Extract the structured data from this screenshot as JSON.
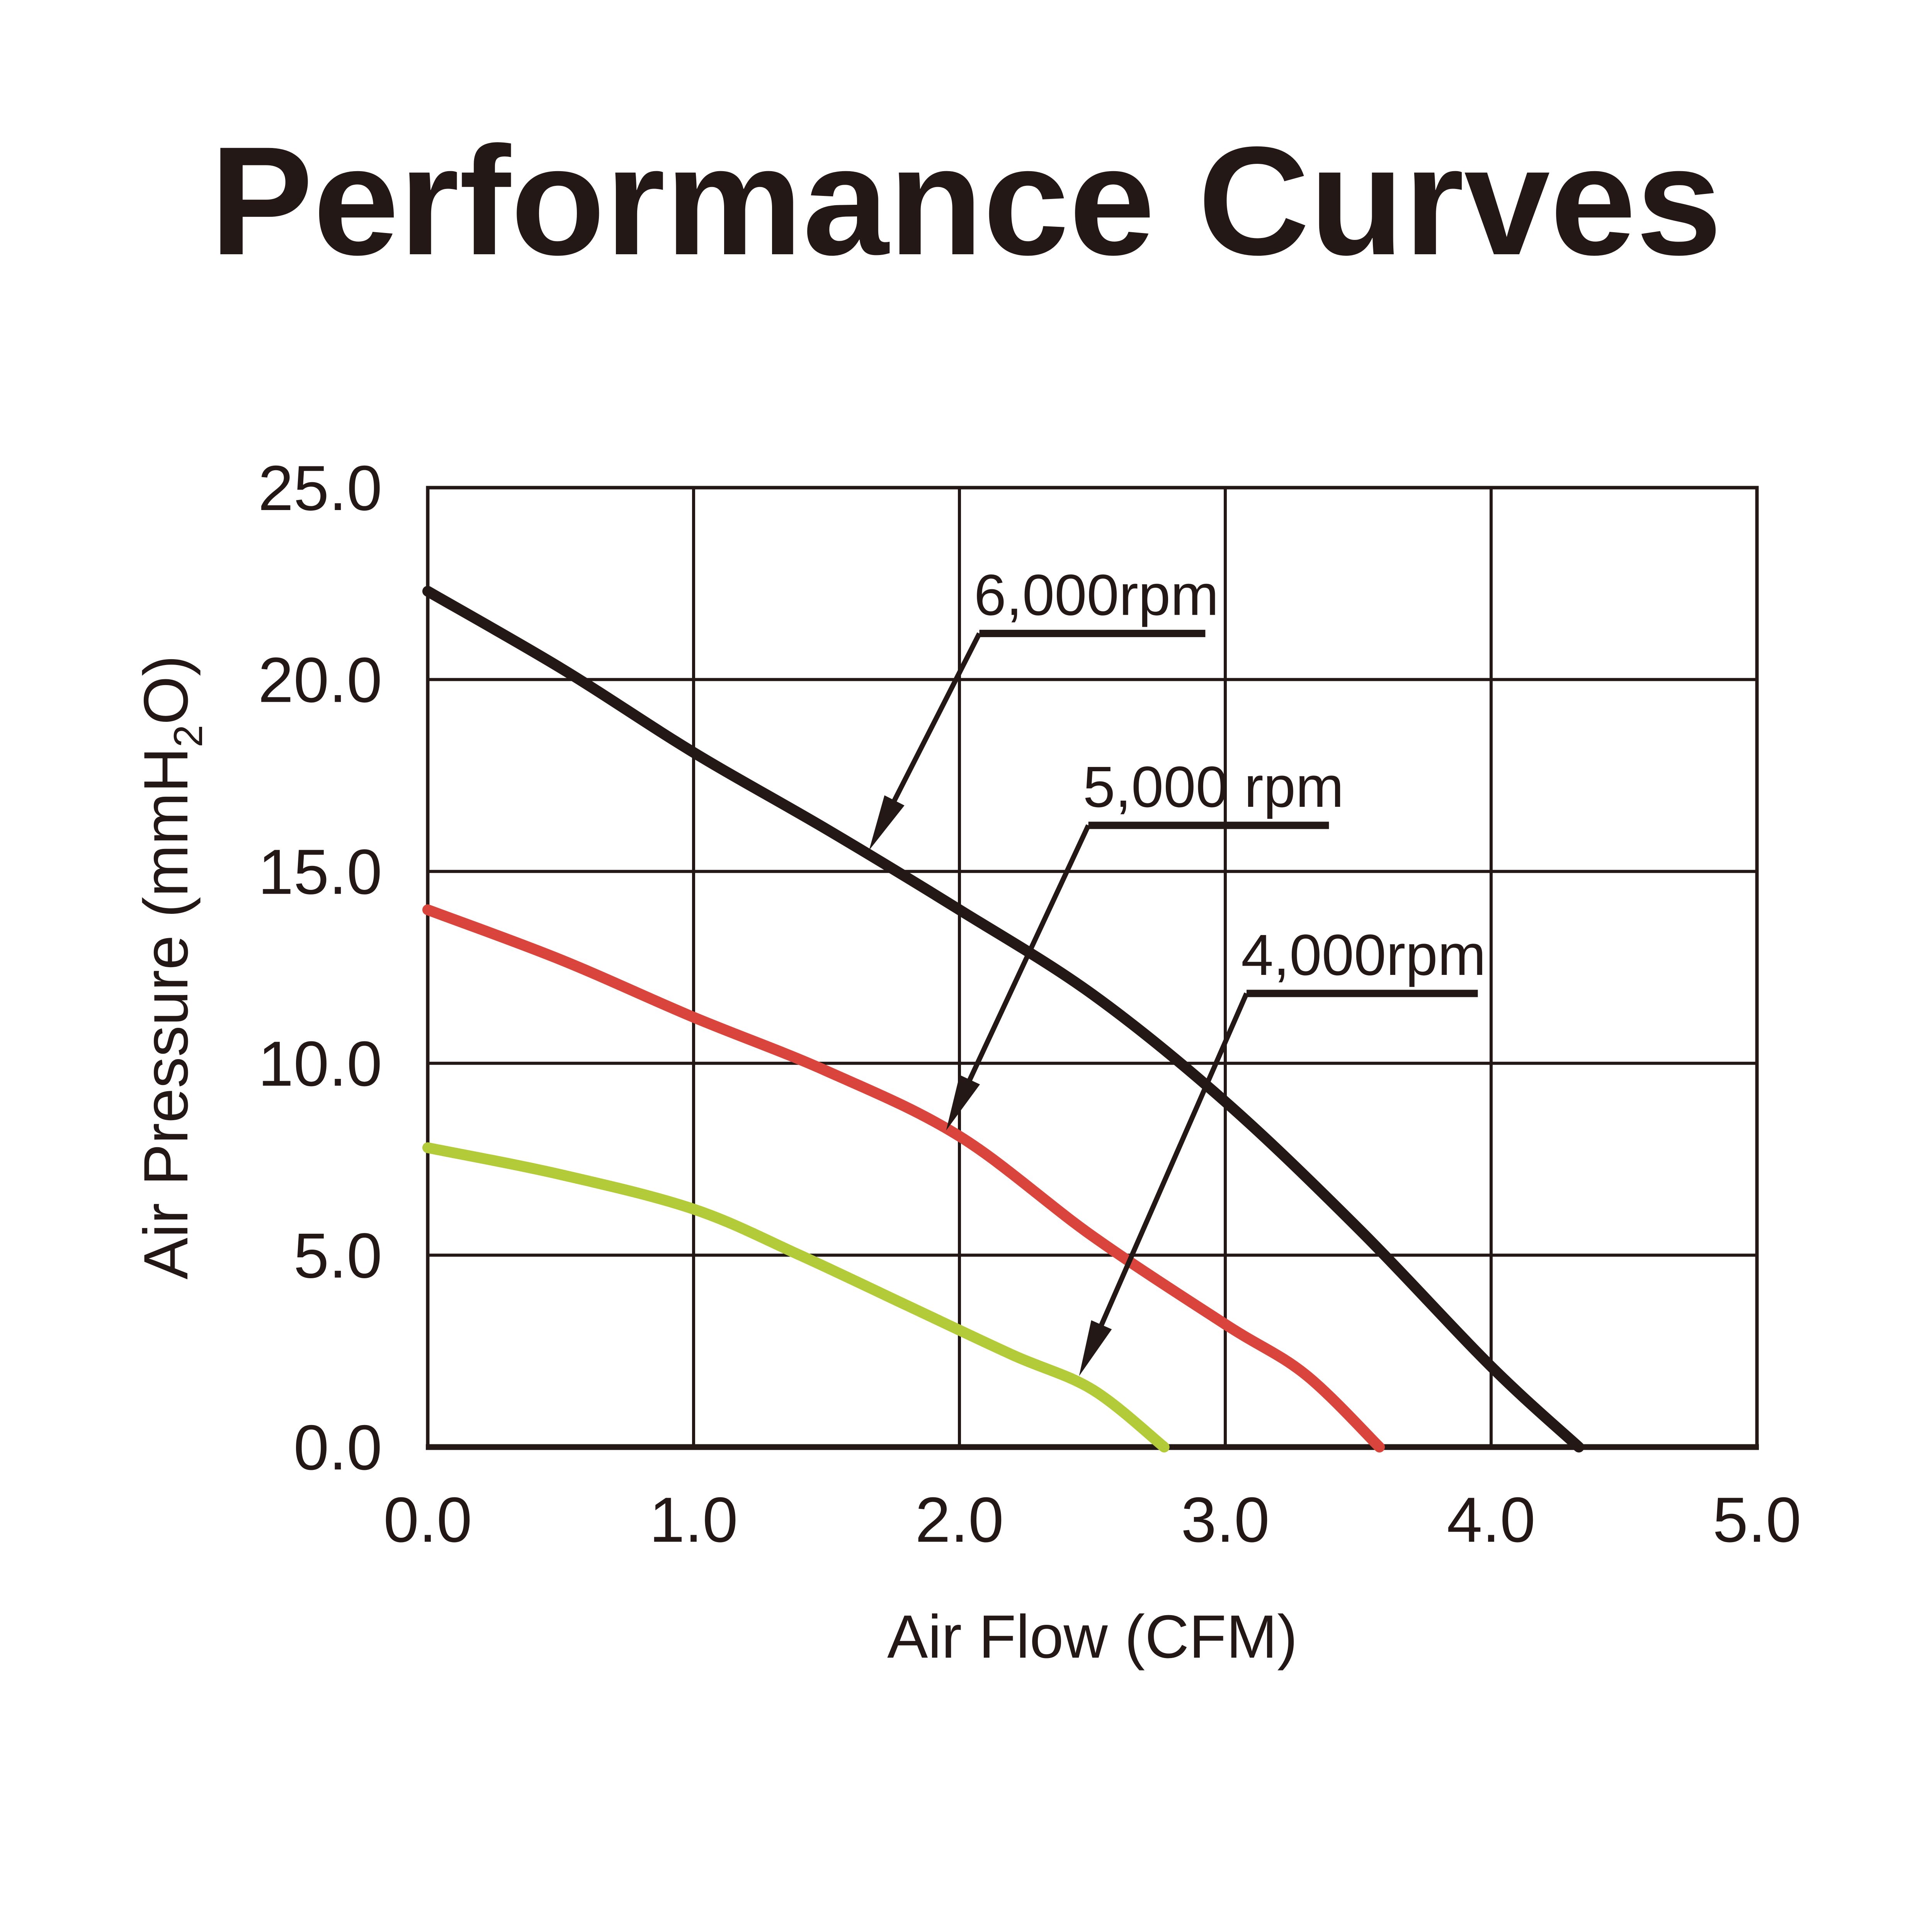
{
  "title": {
    "text": "Performance Curves"
  },
  "colors": {
    "ink": "#231815",
    "red": "#d9453c",
    "green": "#b3cb38",
    "background": "#ffffff"
  },
  "chart_data": {
    "type": "line",
    "title": "Performance Curves",
    "xlabel": "Air Flow (CFM)",
    "ylabel": "Air Pressure (mmH2O)",
    "ylabel_parts": {
      "prefix": "Air Pressure (mmH",
      "subscript": "2",
      "suffix": "O)"
    },
    "xlim": [
      0,
      5
    ],
    "ylim": [
      0,
      25
    ],
    "x_ticks": [
      "0.0",
      "1.0",
      "2.0",
      "3.0",
      "4.0",
      "5.0"
    ],
    "y_ticks": [
      "0.0",
      "5.0",
      "10.0",
      "15.0",
      "20.0",
      "25.0"
    ],
    "x_tick_values": [
      0,
      1,
      2,
      3,
      4,
      5
    ],
    "y_tick_values": [
      0,
      5,
      10,
      15,
      20,
      25
    ],
    "grid": true,
    "legend_position": "inline-annotations",
    "series": [
      {
        "name": "4,000rpm",
        "color": "#b3cb38",
        "points": [
          [
            0,
            7.8
          ],
          [
            0.5,
            7.1
          ],
          [
            1.0,
            6.2
          ],
          [
            1.4,
            5.0
          ],
          [
            1.8,
            3.7
          ],
          [
            2.2,
            2.4
          ],
          [
            2.5,
            1.5
          ],
          [
            2.77,
            0
          ]
        ]
      },
      {
        "name": "5,000 rpm",
        "color": "#d9453c",
        "points": [
          [
            0,
            14.0
          ],
          [
            0.5,
            12.7
          ],
          [
            1.0,
            11.2
          ],
          [
            1.5,
            9.8
          ],
          [
            2.0,
            8.1
          ],
          [
            2.5,
            5.5
          ],
          [
            3.0,
            3.2
          ],
          [
            3.3,
            1.9
          ],
          [
            3.58,
            0
          ]
        ]
      },
      {
        "name": "6,000rpm",
        "color": "#231815",
        "points": [
          [
            0,
            22.3
          ],
          [
            0.5,
            20.3
          ],
          [
            1.0,
            18.1
          ],
          [
            1.5,
            16.1
          ],
          [
            2.0,
            14.0
          ],
          [
            2.5,
            11.8
          ],
          [
            3.0,
            9.0
          ],
          [
            3.5,
            5.7
          ],
          [
            4.0,
            2.1
          ],
          [
            4.33,
            0
          ]
        ]
      }
    ],
    "annotations": [
      {
        "label": "6,000rpm",
        "target_series": "6,000rpm",
        "underline": {
          "x1": 2.075,
          "x2": 2.925,
          "y": 21.2
        },
        "arrow_tip": {
          "x": 1.66,
          "y": 15.55
        }
      },
      {
        "label": "5,000 rpm",
        "target_series": "5,000 rpm",
        "underline": {
          "x1": 2.485,
          "x2": 3.39,
          "y": 16.2
        },
        "arrow_tip": {
          "x": 1.95,
          "y": 8.25
        }
      },
      {
        "label": "4,000rpm",
        "target_series": "4,000rpm",
        "underline": {
          "x1": 3.08,
          "x2": 3.95,
          "y": 11.82
        },
        "arrow_tip": {
          "x": 2.45,
          "y": 1.85
        }
      }
    ]
  }
}
